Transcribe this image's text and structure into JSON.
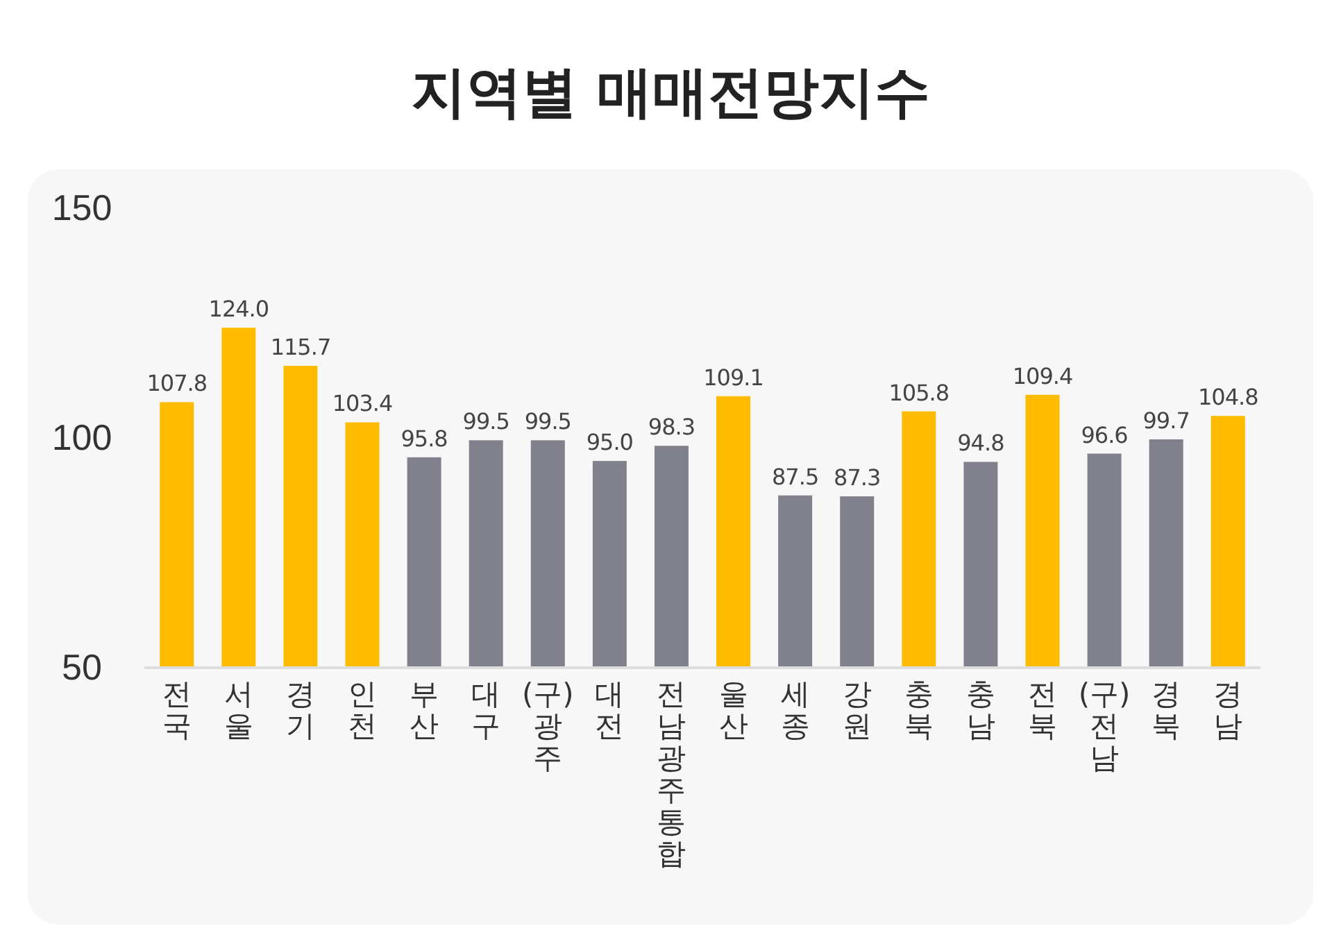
{
  "chart_data": {
    "type": "bar",
    "title": "지역별 매매전망지수",
    "categories": [
      "전국",
      "서울",
      "경기",
      "인천",
      "부산",
      "대구",
      "(구)광주",
      "대전",
      "전남광주통합",
      "울산",
      "세종",
      "강원",
      "충북",
      "충남",
      "전북",
      "(구)전남",
      "경북",
      "경남"
    ],
    "values": [
      107.8,
      124.0,
      115.7,
      103.4,
      95.8,
      99.5,
      99.5,
      95.0,
      98.3,
      109.1,
      87.5,
      87.3,
      105.8,
      94.8,
      109.4,
      96.6,
      99.7,
      104.8
    ],
    "colors": [
      "#ffbb00",
      "#ffbb00",
      "#ffbb00",
      "#ffbb00",
      "#81818d",
      "#81818d",
      "#81818d",
      "#81818d",
      "#81818d",
      "#ffbb00",
      "#81818d",
      "#81818d",
      "#ffbb00",
      "#81818d",
      "#ffbb00",
      "#81818d",
      "#81818d",
      "#ffbb00"
    ],
    "value_labels": [
      "107.8",
      "124.0",
      "115.7",
      "103.4",
      "95.8",
      "99.5",
      "99.5",
      "95.0",
      "98.3",
      "109.1",
      "87.5",
      "87.3",
      "105.8",
      "94.8",
      "109.4",
      "96.6",
      "99.7",
      "104.8"
    ],
    "ylim": [
      50,
      150
    ],
    "yticks": [
      50,
      100,
      150
    ],
    "grid": false
  }
}
